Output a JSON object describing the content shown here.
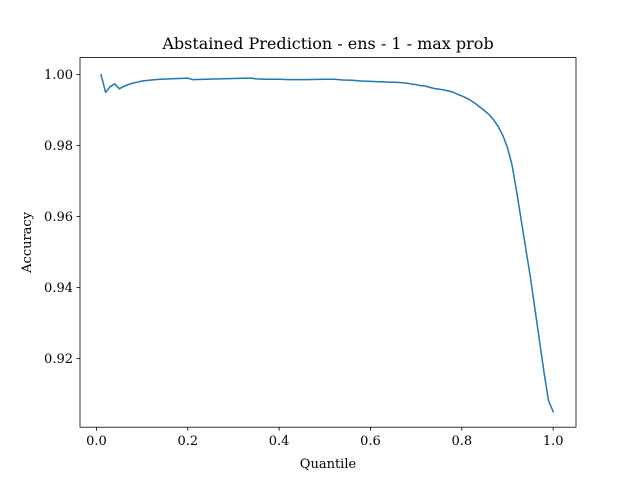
{
  "chart_data": {
    "type": "line",
    "title": "Abstained Prediction - ens - 1 - max prob",
    "xlabel": "Quantile",
    "ylabel": "Accuracy",
    "xlim": [
      -0.036,
      1.05
    ],
    "ylim": [
      0.9006,
      1.0048
    ],
    "xticks": [
      0.0,
      0.2,
      0.4,
      0.6,
      0.8,
      1.0
    ],
    "xtick_labels": [
      "0.0",
      "0.2",
      "0.4",
      "0.6",
      "0.8",
      "1.0"
    ],
    "yticks": [
      0.92,
      0.94,
      0.96,
      0.98,
      1.0
    ],
    "ytick_labels": [
      "0.92",
      "0.94",
      "0.96",
      "0.98",
      "1.00"
    ],
    "grid": false,
    "legend": "none",
    "colors": {
      "series": "#1f77b4",
      "axes": "#000000",
      "background": "#ffffff"
    },
    "series": [
      {
        "x": [
          0.01,
          0.02,
          0.03,
          0.04,
          0.05,
          0.06,
          0.07,
          0.08,
          0.09,
          0.1,
          0.12,
          0.14,
          0.16,
          0.18,
          0.2,
          0.21,
          0.24,
          0.27,
          0.3,
          0.33,
          0.34,
          0.35,
          0.37,
          0.4,
          0.42,
          0.46,
          0.5,
          0.52,
          0.54,
          0.56,
          0.58,
          0.6,
          0.62,
          0.64,
          0.66,
          0.68,
          0.69,
          0.7,
          0.71,
          0.72,
          0.73,
          0.74,
          0.76,
          0.78,
          0.79,
          0.8,
          0.81,
          0.82,
          0.83,
          0.84,
          0.85,
          0.86,
          0.87,
          0.88,
          0.89,
          0.9,
          0.91,
          0.92,
          0.93,
          0.94,
          0.95,
          0.96,
          0.97,
          0.98,
          0.99,
          1.0
        ],
        "y": [
          1.0,
          0.995,
          0.9966,
          0.9974,
          0.996,
          0.9967,
          0.9972,
          0.9976,
          0.9979,
          0.9982,
          0.9985,
          0.9987,
          0.9988,
          0.9989,
          0.999,
          0.9986,
          0.9987,
          0.9988,
          0.9989,
          0.999,
          0.999,
          0.9988,
          0.9987,
          0.9987,
          0.9986,
          0.9986,
          0.9987,
          0.9987,
          0.9985,
          0.9984,
          0.9982,
          0.9981,
          0.998,
          0.9979,
          0.9978,
          0.9976,
          0.9973,
          0.9972,
          0.9969,
          0.9968,
          0.9964,
          0.9961,
          0.9957,
          0.9951,
          0.9945,
          0.994,
          0.9934,
          0.9927,
          0.9918,
          0.9908,
          0.9898,
          0.9887,
          0.9872,
          0.9853,
          0.9828,
          0.9794,
          0.9745,
          0.967,
          0.959,
          0.951,
          0.943,
          0.934,
          0.925,
          0.916,
          0.908,
          0.905
        ]
      }
    ]
  }
}
